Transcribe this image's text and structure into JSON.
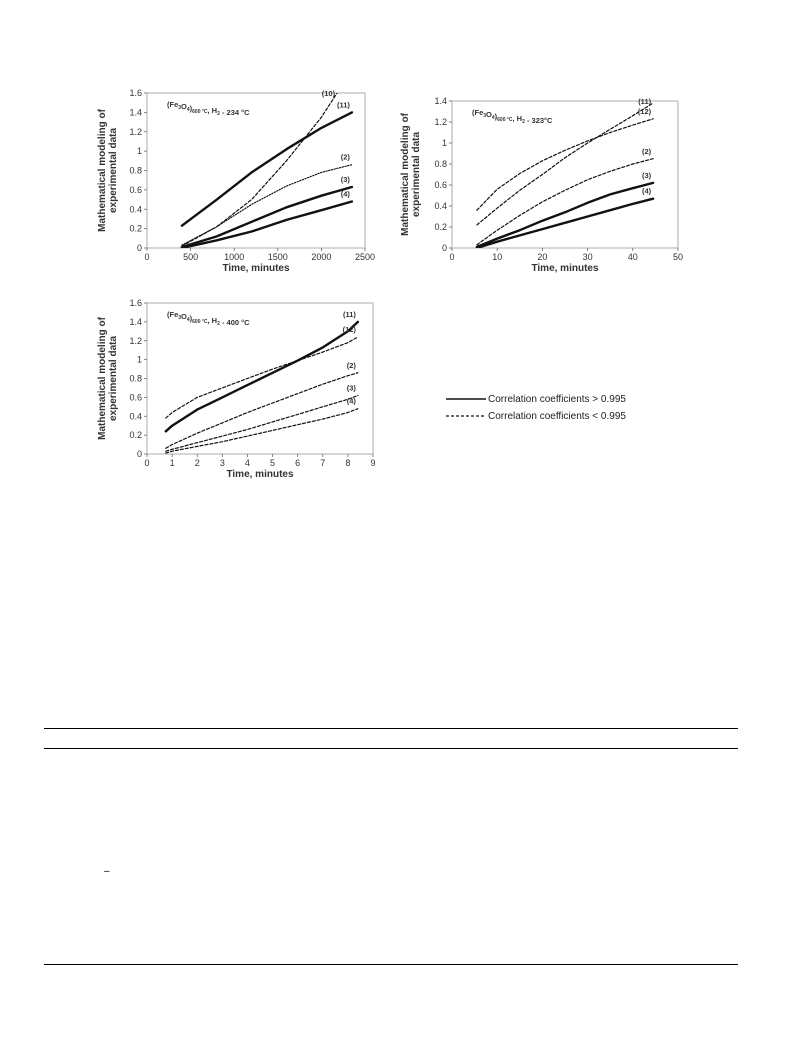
{
  "charts": [
    {
      "id": "c1",
      "type": "line",
      "annotation": {
        "main": "(Fe",
        "sub1": "3",
        "mid": "O",
        "sub2": "4",
        "close": ")",
        "sub3": "600 °C",
        "tail": ", H",
        "sub4": "2",
        "end": " - 234 °C"
      },
      "xlabel": "Time, minutes",
      "ylabel": [
        "Mathematical modeling of",
        "experimental data"
      ],
      "xlim": [
        0,
        2500
      ],
      "ylim": [
        0,
        1.6
      ],
      "xticks": [
        "0",
        "500",
        "1000",
        "1500",
        "2000",
        "2500"
      ],
      "yticks": [
        "0",
        "0.2",
        "0.4",
        "0.6",
        "0.8",
        "1",
        "1.2",
        "1.4",
        "1.6"
      ],
      "series": [
        {
          "name": "(10)",
          "style": "dashed",
          "x": [
            400,
            800,
            1200,
            1600,
            2000,
            2180
          ],
          "y": [
            0.02,
            0.22,
            0.5,
            0.9,
            1.35,
            1.6
          ]
        },
        {
          "name": "(11)",
          "style": "solid-thick",
          "x": [
            400,
            800,
            1200,
            1600,
            2000,
            2350
          ],
          "y": [
            0.23,
            0.5,
            0.78,
            1.02,
            1.24,
            1.4
          ]
        },
        {
          "name": "(2)",
          "style": "dotted",
          "x": [
            400,
            800,
            1200,
            1600,
            2000,
            2350
          ],
          "y": [
            0.03,
            0.22,
            0.45,
            0.64,
            0.78,
            0.86
          ]
        },
        {
          "name": "(3)",
          "style": "solid-thick",
          "x": [
            400,
            800,
            1200,
            1600,
            2000,
            2350
          ],
          "y": [
            0.01,
            0.12,
            0.27,
            0.42,
            0.54,
            0.63
          ]
        },
        {
          "name": "(4)",
          "style": "solid-thick",
          "x": [
            400,
            800,
            1200,
            1600,
            2000,
            2350
          ],
          "y": [
            0.0,
            0.08,
            0.17,
            0.29,
            0.39,
            0.48
          ]
        }
      ]
    },
    {
      "id": "c2",
      "type": "line",
      "annotation": {
        "main": "(Fe",
        "sub1": "3",
        "mid": "O",
        "sub2": "4",
        "close": ")",
        "sub3": "600 °C",
        "tail": ", H",
        "sub4": "2",
        "end": " - 323°C"
      },
      "xlabel": "Time, minutes",
      "ylabel": [
        "Mathematical modeling of",
        "experimental data"
      ],
      "xlim": [
        0,
        50
      ],
      "ylim": [
        0,
        1.4
      ],
      "xticks": [
        "0",
        "10",
        "20",
        "30",
        "40",
        "50"
      ],
      "yticks": [
        "0",
        "0.2",
        "0.4",
        "0.6",
        "0.8",
        "1",
        "1.2",
        "1.4"
      ],
      "series": [
        {
          "name": "(11)",
          "style": "dashed",
          "x": [
            5.5,
            10,
            15,
            20,
            25,
            30,
            35,
            40,
            44.5
          ],
          "y": [
            0.22,
            0.38,
            0.55,
            0.7,
            0.86,
            1.0,
            1.13,
            1.26,
            1.38
          ]
        },
        {
          "name": "(12)",
          "style": "dashed",
          "x": [
            5.5,
            10,
            15,
            20,
            25,
            30,
            35,
            40,
            44.5
          ],
          "y": [
            0.36,
            0.56,
            0.71,
            0.83,
            0.93,
            1.02,
            1.1,
            1.17,
            1.23
          ]
        },
        {
          "name": "(2)",
          "style": "dashed",
          "x": [
            5.5,
            10,
            15,
            20,
            25,
            30,
            35,
            40,
            44.5
          ],
          "y": [
            0.03,
            0.17,
            0.31,
            0.44,
            0.55,
            0.65,
            0.73,
            0.8,
            0.85
          ]
        },
        {
          "name": "(3)",
          "style": "solid-thick",
          "x": [
            5.5,
            10,
            15,
            20,
            25,
            30,
            35,
            40,
            44.5
          ],
          "y": [
            0.01,
            0.09,
            0.17,
            0.26,
            0.34,
            0.43,
            0.51,
            0.57,
            0.62
          ]
        },
        {
          "name": "(4)",
          "style": "solid-thick",
          "x": [
            5.5,
            10,
            15,
            20,
            25,
            30,
            35,
            40,
            44.5
          ],
          "y": [
            0.0,
            0.06,
            0.12,
            0.18,
            0.24,
            0.3,
            0.36,
            0.42,
            0.47
          ]
        }
      ]
    },
    {
      "id": "c3",
      "type": "line",
      "annotation": {
        "main": "(Fe",
        "sub1": "3",
        "mid": "O",
        "sub2": "4",
        "close": ")",
        "sub3": "600 °C",
        "tail": ", H",
        "sub4": "2",
        "end": " - 400 °C"
      },
      "xlabel": "Time, minutes",
      "ylabel": [
        "Mathematical modeling of",
        "experimental data"
      ],
      "xlim": [
        0,
        9
      ],
      "ylim": [
        0,
        1.6
      ],
      "xticks": [
        "0",
        "1",
        "2",
        "3",
        "4",
        "5",
        "6",
        "7",
        "8",
        "9"
      ],
      "yticks": [
        "0",
        "0.2",
        "0.4",
        "0.6",
        "0.8",
        "1",
        "1.2",
        "1.4",
        "1.6"
      ],
      "series": [
        {
          "name": "(11)",
          "style": "solid-thick",
          "x": [
            0.75,
            1,
            2,
            3,
            4,
            5,
            6,
            7,
            8,
            8.4
          ],
          "y": [
            0.24,
            0.3,
            0.47,
            0.6,
            0.73,
            0.86,
            0.99,
            1.13,
            1.3,
            1.4
          ]
        },
        {
          "name": "(12)",
          "style": "dashed",
          "x": [
            0.75,
            1,
            2,
            3,
            4,
            5,
            6,
            7,
            8,
            8.4
          ],
          "y": [
            0.38,
            0.44,
            0.6,
            0.7,
            0.8,
            0.9,
            0.99,
            1.08,
            1.18,
            1.24
          ]
        },
        {
          "name": "(2)",
          "style": "dashed",
          "x": [
            0.75,
            1,
            2,
            3,
            4,
            5,
            6,
            7,
            8,
            8.4
          ],
          "y": [
            0.06,
            0.1,
            0.22,
            0.33,
            0.44,
            0.54,
            0.64,
            0.74,
            0.83,
            0.86
          ]
        },
        {
          "name": "(3)",
          "style": "dashed",
          "x": [
            0.75,
            1,
            2,
            3,
            4,
            5,
            6,
            7,
            8,
            8.4
          ],
          "y": [
            0.03,
            0.05,
            0.12,
            0.19,
            0.26,
            0.34,
            0.42,
            0.5,
            0.58,
            0.62
          ]
        },
        {
          "name": "(4)",
          "style": "dashed",
          "x": [
            0.75,
            1,
            2,
            3,
            4,
            5,
            6,
            7,
            8,
            8.4
          ],
          "y": [
            0.01,
            0.03,
            0.08,
            0.13,
            0.19,
            0.25,
            0.31,
            0.37,
            0.44,
            0.48
          ]
        }
      ]
    }
  ],
  "legend": {
    "solid_label": "Correlation coefficients > 0.995",
    "dashed_label": "Correlation coefficients < 0.995"
  },
  "page": {
    "stray_mark": "–"
  }
}
